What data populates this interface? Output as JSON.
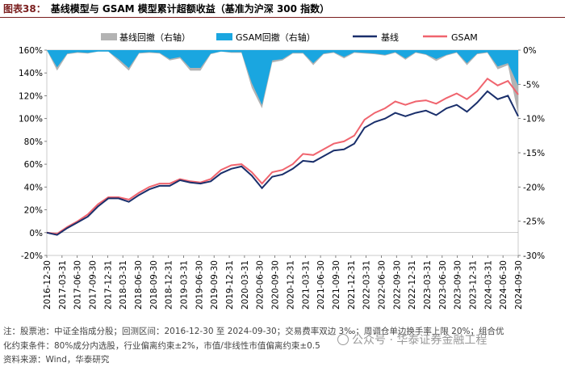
{
  "header": {
    "figure_label": "图表38：",
    "title": "基线模型与 GSAM 模型累计超额收益（基准为沪深 300 指数）"
  },
  "footnotes": {
    "line1": "注：股票池：中证全指成分股；回测区间：2016-12-30 至 2024-09-30；交易费率双边 3‰；周调仓单边换手率上限 20%；组合优",
    "line2": "化约束条件：80%成分内选股，行业偏离约束±2%，市值/非线性市值偏离约束±0.5",
    "source": "资料来源：Wind，华泰研究"
  },
  "watermark": {
    "text": "公众号 · 华泰证券金融工程"
  },
  "colors": {
    "baseline": "#1a2f6b",
    "gsam": "#f0646e",
    "baseline_dd": "#b3b3b3",
    "gsam_dd": "#1aa6e0"
  },
  "chart_data": {
    "type": "line",
    "title": "",
    "legend": [
      "基线回撤（右轴）",
      "GSAM回撤（右轴）",
      "基线",
      "GSAM"
    ],
    "legend_position": "top",
    "left_axis": {
      "ylim": [
        -0.2,
        1.6
      ],
      "ticks": [
        "-20%",
        "0%",
        "20%",
        "40%",
        "60%",
        "80%",
        "100%",
        "120%",
        "140%",
        "160%"
      ]
    },
    "right_axis": {
      "ylim": [
        -0.3,
        0.0
      ],
      "ticks": [
        "-30%",
        "-25%",
        "-20%",
        "-15%",
        "-10%",
        "-5%",
        "0%"
      ]
    },
    "x_tick_labels": [
      "2016-12-30",
      "2017-03-31",
      "2017-06-30",
      "2017-09-30",
      "2017-12-31",
      "2018-03-31",
      "2018-06-30",
      "2018-09-30",
      "2018-12-31",
      "2019-03-31",
      "2019-06-30",
      "2019-09-30",
      "2019-12-31",
      "2020-03-31",
      "2020-06-30",
      "2020-09-30",
      "2020-12-31",
      "2021-03-31",
      "2021-06-30",
      "2021-09-30",
      "2021-12-31",
      "2022-03-31",
      "2022-06-30",
      "2022-09-30",
      "2022-12-31",
      "2023-03-31",
      "2023-06-30",
      "2023-09-30",
      "2023-12-31",
      "2024-03-31",
      "2024-06-30",
      "2024-09-30"
    ],
    "series": [
      {
        "name": "基线",
        "values": [
          0.0,
          -0.02,
          0.04,
          0.09,
          0.14,
          0.23,
          0.3,
          0.3,
          0.27,
          0.33,
          0.38,
          0.41,
          0.41,
          0.46,
          0.44,
          0.43,
          0.45,
          0.52,
          0.56,
          0.58,
          0.5,
          0.39,
          0.49,
          0.51,
          0.56,
          0.63,
          0.62,
          0.67,
          0.72,
          0.73,
          0.78,
          0.92,
          0.97,
          1.0,
          1.05,
          1.02,
          1.05,
          1.07,
          1.03,
          1.09,
          1.12,
          1.06,
          1.14,
          1.24,
          1.17,
          1.2,
          1.02
        ]
      },
      {
        "name": "GSAM",
        "values": [
          0.0,
          -0.01,
          0.05,
          0.1,
          0.16,
          0.25,
          0.31,
          0.31,
          0.29,
          0.35,
          0.4,
          0.43,
          0.43,
          0.47,
          0.45,
          0.44,
          0.47,
          0.55,
          0.59,
          0.6,
          0.53,
          0.43,
          0.53,
          0.55,
          0.6,
          0.69,
          0.68,
          0.73,
          0.78,
          0.8,
          0.85,
          0.99,
          1.05,
          1.09,
          1.15,
          1.12,
          1.15,
          1.16,
          1.13,
          1.18,
          1.22,
          1.17,
          1.24,
          1.35,
          1.29,
          1.33,
          1.21
        ]
      },
      {
        "name": "基线回撤（右轴）",
        "values": [
          0.0,
          -0.03,
          -0.006,
          -0.004,
          -0.005,
          -0.002,
          -0.002,
          -0.016,
          -0.03,
          -0.005,
          -0.004,
          -0.005,
          -0.015,
          -0.012,
          -0.03,
          -0.03,
          -0.006,
          -0.002,
          -0.004,
          -0.004,
          -0.055,
          -0.085,
          -0.018,
          -0.015,
          -0.005,
          -0.005,
          -0.022,
          -0.006,
          -0.004,
          -0.012,
          -0.004,
          -0.005,
          -0.006,
          -0.008,
          -0.004,
          -0.014,
          -0.004,
          -0.007,
          -0.016,
          -0.008,
          -0.004,
          -0.022,
          -0.006,
          -0.004,
          -0.028,
          -0.022,
          -0.095
        ]
      },
      {
        "name": "GSAM回撤（右轴）",
        "values": [
          0.0,
          -0.025,
          -0.005,
          -0.003,
          -0.004,
          -0.002,
          -0.002,
          -0.013,
          -0.026,
          -0.004,
          -0.003,
          -0.004,
          -0.013,
          -0.01,
          -0.026,
          -0.026,
          -0.005,
          -0.002,
          -0.003,
          -0.003,
          -0.048,
          -0.08,
          -0.015,
          -0.013,
          -0.004,
          -0.004,
          -0.019,
          -0.005,
          -0.003,
          -0.01,
          -0.003,
          -0.004,
          -0.005,
          -0.007,
          -0.003,
          -0.012,
          -0.003,
          -0.006,
          -0.013,
          -0.007,
          -0.003,
          -0.019,
          -0.005,
          -0.003,
          -0.024,
          -0.019,
          -0.052
        ]
      }
    ]
  }
}
